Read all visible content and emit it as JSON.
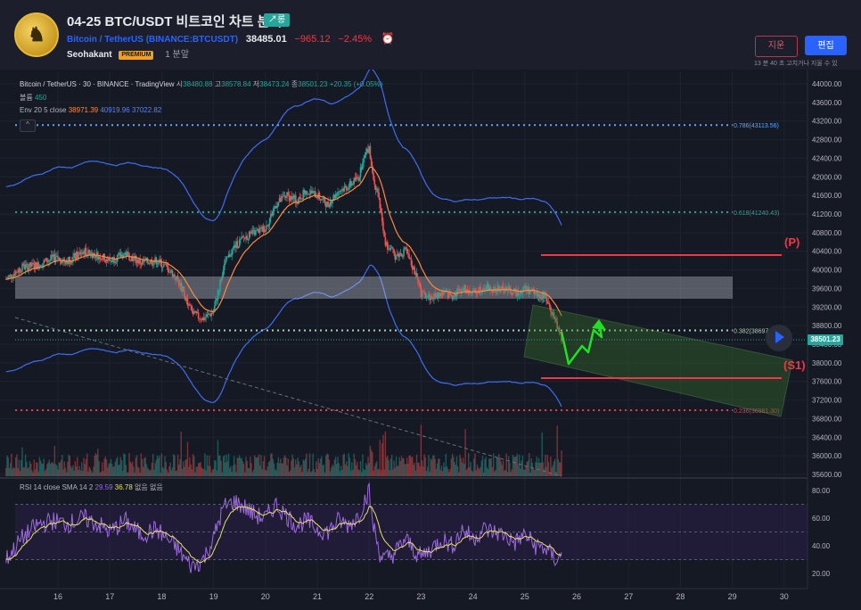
{
  "header": {
    "title": "04-25 BTC/USDT 비트코인 차트 분석",
    "tag": "↗롱",
    "symbol_name": "Bitcoin / TetherUS",
    "symbol_exchange": "(BINANCE:BTCUSDT)",
    "price": "38485.01",
    "change": "−965.12",
    "change_pct": "−2.45%",
    "author": "Seohakant",
    "badge": "PREMIUM",
    "posted_ago": "1 분앞",
    "delete_label": "지운",
    "edit_label": "편집",
    "edit_note": "13 분 40 초 고치거나 지울 수 있"
  },
  "legend": {
    "main_symbol": "Bitcoin / TetherUS · 30 · BINANCE · TradingView",
    "o_label": "시",
    "o_val": "38480.88",
    "h_label": "고",
    "h_val": "38578.84",
    "l_label": "저",
    "l_val": "38473.24",
    "c_label": "종",
    "c_val": "38501.23",
    "c_chg": "+20.35 (+0.05%)",
    "volume_label": "볼륨",
    "volume_val": "450",
    "env_label": "Env 20 5 close",
    "env_v1": "38971.39",
    "env_v2": "40919.96",
    "env_v3": "37022.82",
    "rsi_label": "RSI 14 close SMA 14 2",
    "rsi_v1": "29.59",
    "rsi_v2": "36.78",
    "rsi_na1": "없음",
    "rsi_na2": "없음",
    "collapse_label": "^"
  },
  "last_price": "38501.23",
  "colors": {
    "up": "#26a69a",
    "down": "#ef5350",
    "fib_blue": "#5aa7ff",
    "fib_teal": "#26a69a",
    "fib_green": "#a5d6a7",
    "fib_red": "#f23645",
    "env": "#3d6df2",
    "ma": "#ff8a3c",
    "rsi": "#9c6ade",
    "rsi_sma": "#e6e35c",
    "arrow": "#22e022",
    "level_red": "#f23645"
  },
  "annotations": {
    "pivot": "(P)",
    "support": "(S1)"
  },
  "chart_data": {
    "type": "candlestick",
    "price_axis": [
      "44000.00",
      "43600.00",
      "43200.00",
      "42800.00",
      "42400.00",
      "42000.00",
      "41600.00",
      "41200.00",
      "40800.00",
      "40400.00",
      "40000.00",
      "39600.00",
      "39200.00",
      "38800.00",
      "38400.00",
      "38000.00",
      "37600.00",
      "37200.00",
      "36800.00",
      "36400.00",
      "36000.00",
      "35600.00"
    ],
    "rsi_axis": [
      "80.00",
      "60.00",
      "40.00",
      "20.00"
    ],
    "time_axis": [
      "16",
      "17",
      "18",
      "19",
      "20",
      "21",
      "22",
      "23",
      "24",
      "25",
      "26",
      "27",
      "28",
      "29",
      "30"
    ],
    "fib_levels": [
      {
        "label": "0.786(43113.56)",
        "price": 43113.56
      },
      {
        "label": "0.618(41240.43)",
        "price": 41240.43
      },
      {
        "label": "0.382(38697",
        "price": 38697
      },
      {
        "label": "0.236(36981.30)",
        "price": 36981.3
      }
    ],
    "close_path": [
      [
        15.0,
        39800
      ],
      [
        15.3,
        40050
      ],
      [
        15.6,
        40100
      ],
      [
        15.9,
        40250
      ],
      [
        16.2,
        40200
      ],
      [
        16.5,
        40400
      ],
      [
        16.8,
        40300
      ],
      [
        17.0,
        40200
      ],
      [
        17.3,
        40350
      ],
      [
        17.6,
        40150
      ],
      [
        17.9,
        40200
      ],
      [
        18.1,
        40050
      ],
      [
        18.3,
        39800
      ],
      [
        18.5,
        39300
      ],
      [
        18.6,
        39050
      ],
      [
        18.8,
        38950
      ],
      [
        19.0,
        39100
      ],
      [
        19.1,
        39600
      ],
      [
        19.2,
        40100
      ],
      [
        19.4,
        40500
      ],
      [
        19.6,
        40700
      ],
      [
        19.8,
        40800
      ],
      [
        20.0,
        40900
      ],
      [
        20.2,
        41400
      ],
      [
        20.4,
        41600
      ],
      [
        20.6,
        41500
      ],
      [
        20.8,
        41700
      ],
      [
        21.0,
        41600
      ],
      [
        21.2,
        41400
      ],
      [
        21.4,
        41700
      ],
      [
        21.6,
        41800
      ],
      [
        21.8,
        42000
      ],
      [
        21.9,
        42400
      ],
      [
        22.0,
        42650
      ],
      [
        22.05,
        42200
      ],
      [
        22.2,
        41400
      ],
      [
        22.3,
        40600
      ],
      [
        22.5,
        40300
      ],
      [
        22.7,
        40400
      ],
      [
        22.9,
        39900
      ],
      [
        23.0,
        39500
      ],
      [
        23.2,
        39400
      ],
      [
        23.4,
        39500
      ],
      [
        23.6,
        39450
      ],
      [
        23.8,
        39600
      ],
      [
        24.0,
        39500
      ],
      [
        24.2,
        39650
      ],
      [
        24.4,
        39550
      ],
      [
        24.6,
        39600
      ],
      [
        24.8,
        39500
      ],
      [
        25.0,
        39600
      ],
      [
        25.2,
        39500
      ],
      [
        25.4,
        39400
      ],
      [
        25.6,
        38900
      ],
      [
        25.7,
        38500
      ]
    ],
    "rsi_path": [
      [
        15.0,
        30
      ],
      [
        15.3,
        45
      ],
      [
        15.6,
        55
      ],
      [
        15.9,
        58
      ],
      [
        16.2,
        56
      ],
      [
        16.5,
        60
      ],
      [
        16.8,
        55
      ],
      [
        17.0,
        50
      ],
      [
        17.3,
        58
      ],
      [
        17.6,
        48
      ],
      [
        17.9,
        52
      ],
      [
        18.1,
        45
      ],
      [
        18.3,
        38
      ],
      [
        18.5,
        28
      ],
      [
        18.6,
        25
      ],
      [
        18.8,
        30
      ],
      [
        19.0,
        45
      ],
      [
        19.1,
        58
      ],
      [
        19.2,
        68
      ],
      [
        19.4,
        72
      ],
      [
        19.6,
        68
      ],
      [
        19.8,
        62
      ],
      [
        20.0,
        60
      ],
      [
        20.2,
        70
      ],
      [
        20.4,
        62
      ],
      [
        20.6,
        55
      ],
      [
        20.8,
        58
      ],
      [
        21.0,
        52
      ],
      [
        21.2,
        50
      ],
      [
        21.4,
        58
      ],
      [
        21.6,
        55
      ],
      [
        21.8,
        62
      ],
      [
        21.9,
        72
      ],
      [
        22.0,
        80
      ],
      [
        22.05,
        60
      ],
      [
        22.2,
        35
      ],
      [
        22.3,
        30
      ],
      [
        22.5,
        35
      ],
      [
        22.7,
        45
      ],
      [
        22.9,
        35
      ],
      [
        23.0,
        32
      ],
      [
        23.2,
        38
      ],
      [
        23.4,
        45
      ],
      [
        23.6,
        40
      ],
      [
        23.8,
        52
      ],
      [
        24.0,
        45
      ],
      [
        24.2,
        52
      ],
      [
        24.4,
        50
      ],
      [
        24.6,
        48
      ],
      [
        24.8,
        42
      ],
      [
        25.0,
        48
      ],
      [
        25.2,
        40
      ],
      [
        25.4,
        38
      ],
      [
        25.6,
        30
      ],
      [
        25.7,
        32
      ]
    ]
  }
}
